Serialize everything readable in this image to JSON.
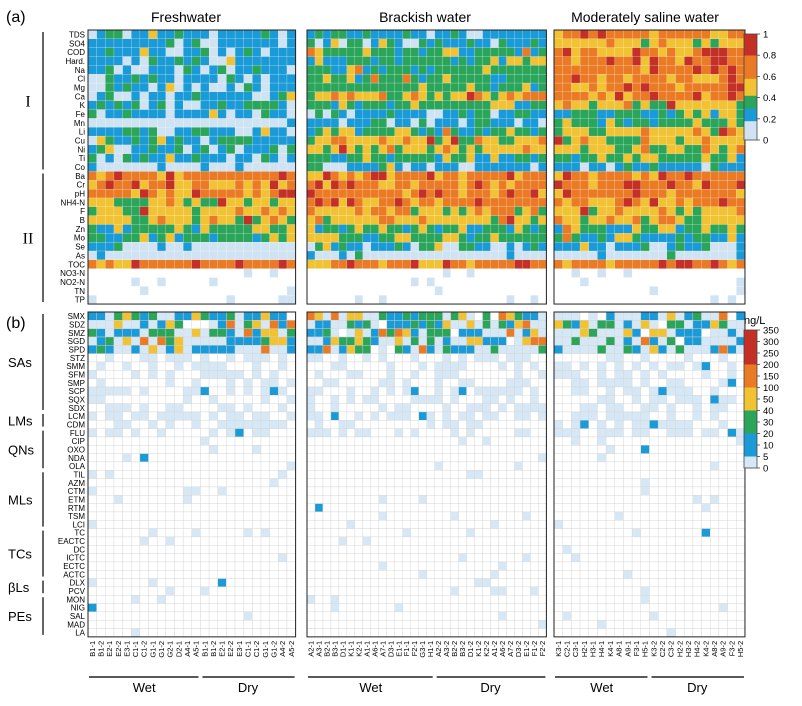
{
  "panel_labels": {
    "a": "(a)",
    "b": "(b)"
  },
  "chart_data": {
    "type": "heatmap",
    "column_titles": [
      "Freshwater",
      "Brackish water",
      "Moderately saline water"
    ],
    "period_labels": [
      "Wet",
      "Dry"
    ],
    "panel_a": {
      "legend_ticks": [
        "1",
        "0.8",
        "0.6",
        "0.4",
        "0.2",
        "0"
      ],
      "legend_colors": [
        "#cfe3f3",
        "#1a9ad6",
        "#2aa55a",
        "#f1c232",
        "#eb7a25",
        "#c43025"
      ],
      "groups": [
        {
          "name": "I",
          "rows": [
            "TDS",
            "SO4",
            "COD",
            "Hard.",
            "Na",
            "Cl",
            "Mg",
            "Ca",
            "K",
            "Fe",
            "Mn",
            "Li",
            "Cu",
            "Ni",
            "Ti",
            "Co"
          ]
        },
        {
          "name": "II",
          "rows": [
            "Ba",
            "Cr",
            "pH",
            "NH4-N",
            "F",
            "B",
            "Zn",
            "Mo",
            "Se",
            "As",
            "TOC",
            "NO3-N",
            "NO2-N",
            "TN",
            "TP"
          ]
        }
      ],
      "rows": [
        "TDS",
        "SO4",
        "COD",
        "Hard.",
        "Na",
        "Cl",
        "Mg",
        "Ca",
        "K",
        "Fe",
        "Mn",
        "Li",
        "Cu",
        "Ni",
        "Ti",
        "Co",
        "Ba",
        "Cr",
        "pH",
        "NH4-N",
        "F",
        "B",
        "Zn",
        "Mo",
        "Se",
        "As",
        "TOC",
        "NO3-N",
        "NO2-N",
        "TN",
        "TP"
      ],
      "row_levels": {
        "Freshwater": [
          1,
          1,
          1,
          1,
          1,
          1,
          1,
          1,
          1,
          1,
          0,
          1,
          1,
          1,
          1,
          0,
          4,
          4,
          4,
          3,
          3,
          3,
          2,
          2,
          0,
          0,
          4,
          0,
          0,
          0,
          0
        ],
        "Brackish water": [
          1,
          1,
          2,
          2,
          2,
          2,
          2,
          3,
          2,
          1,
          1,
          2,
          3,
          3,
          2,
          1,
          4,
          4,
          4,
          4,
          3,
          3,
          2,
          2,
          1,
          0,
          4,
          0,
          0,
          0,
          0
        ],
        "Moderately saline water": [
          4,
          3,
          4,
          4,
          4,
          4,
          4,
          4,
          3,
          2,
          2,
          3,
          3,
          3,
          2,
          1,
          4,
          4,
          4,
          4,
          3,
          3,
          2,
          2,
          1,
          0,
          4,
          0,
          0,
          0,
          0
        ]
      }
    },
    "panel_b": {
      "unit": "ng/L",
      "legend_ticks": [
        "350",
        "300",
        "250",
        "200",
        "150",
        "100",
        "50",
        "40",
        "30",
        "20",
        "10",
        "5",
        "0"
      ],
      "legend_colors": [
        "#ffffff",
        "#d6e8f6",
        "#1a9ad6",
        "#2aa55a",
        "#f1c232",
        "#eb7a25",
        "#c43025"
      ],
      "groups": [
        {
          "name": "SAs",
          "rows": [
            "SMX",
            "SDZ",
            "SMZ",
            "SGD",
            "SPD",
            "STZ",
            "SMM",
            "SFM",
            "SMP",
            "SCP",
            "SQX",
            "SDX"
          ]
        },
        {
          "name": "LMs",
          "rows": [
            "LCM",
            "CDM"
          ]
        },
        {
          "name": "QNs",
          "rows": [
            "FLU",
            "CIP",
            "OXO",
            "NDA",
            "OLA"
          ]
        },
        {
          "name": "MLs",
          "rows": [
            "TIL",
            "AZM",
            "CTM",
            "ETM",
            "RTM",
            "TSM",
            "LCI"
          ]
        },
        {
          "name": "TCs",
          "rows": [
            "TC",
            "EACTC",
            "DC",
            "ICTC",
            "ECTC",
            "ACTC"
          ]
        },
        {
          "name": "βLs",
          "rows": [
            "DLX",
            "PCV"
          ]
        },
        {
          "name": "PEs",
          "rows": [
            "MON",
            "NIG",
            "SAL",
            "MAD",
            "LA"
          ]
        }
      ],
      "rows": [
        "SMX",
        "SDZ",
        "SMZ",
        "SGD",
        "SPD",
        "STZ",
        "SMM",
        "SFM",
        "SMP",
        "SCP",
        "SQX",
        "SDX",
        "LCM",
        "CDM",
        "FLU",
        "CIP",
        "OXO",
        "NDA",
        "OLA",
        "TIL",
        "AZM",
        "CTM",
        "ETM",
        "RTM",
        "TSM",
        "LCI",
        "TC",
        "EACTC",
        "DC",
        "ICTC",
        "ECTC",
        "ACTC",
        "DLX",
        "PCV",
        "MON",
        "NIG",
        "SAL",
        "MAD",
        "LA"
      ]
    },
    "x_labels": {
      "Freshwater": [
        "B1-1",
        "B1-2",
        "E2-1",
        "E2-2",
        "E3-1",
        "C1-1",
        "C1-2",
        "G1-1",
        "G1-2",
        "G2-1",
        "D2-1",
        "A4-1",
        "A5-1",
        "B1-1",
        "B1-2",
        "E2-1",
        "E2-2",
        "E3-1",
        "C1-1",
        "C1-2",
        "G1-1",
        "G1-2",
        "A4-2",
        "A5-2"
      ],
      "Brackish water": [
        "A2-1",
        "A3-1",
        "B2-1",
        "B3-1",
        "D1-1",
        "K1-1",
        "K2-1",
        "A1-1",
        "A6-1",
        "A7-1",
        "D3-1",
        "E1-1",
        "F1-1",
        "F2-1",
        "G3-1",
        "H1-1",
        "A2-2",
        "A3-2",
        "B2-2",
        "B3-2",
        "D1-2",
        "K1-2",
        "K2-2",
        "A1-2",
        "A6-2",
        "A7-2",
        "D3-2",
        "E1-2",
        "F1-2",
        "F2-2"
      ],
      "Moderately saline water": [
        "K3-1",
        "C2-1",
        "C3-1",
        "H2-1",
        "H3-1",
        "H4-1",
        "K4-1",
        "A8-1",
        "A9-1",
        "F3-1",
        "H5-1",
        "K3-2",
        "C2-2",
        "C3-2",
        "H2-2",
        "H3-2",
        "H4-2",
        "K4-2",
        "A8-2",
        "A9-2",
        "F3-2",
        "H5-2"
      ]
    },
    "wet_counts": {
      "Freshwater": 13,
      "Brackish water": 16,
      "Moderately saline water": 11
    }
  }
}
